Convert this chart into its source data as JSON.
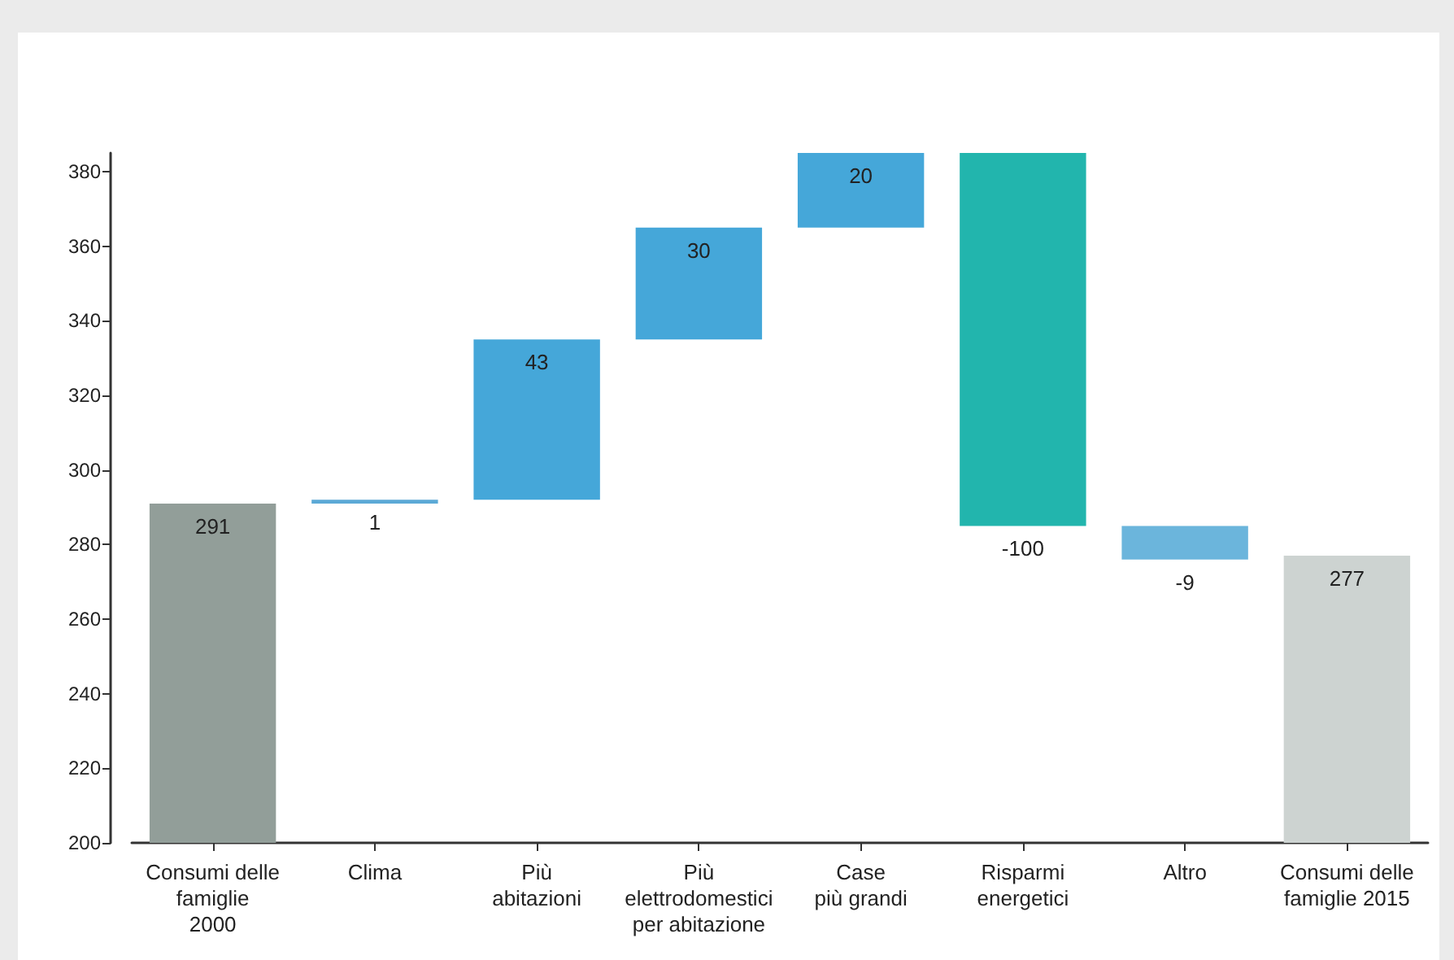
{
  "chart_data": {
    "type": "bar",
    "categories": [
      "Consumi delle\nfamiglie\n2000",
      "Clima",
      "Più\nabitazioni",
      "Più\nelettrodomestici\nper abitazione",
      "Case\npiù grandi",
      "Risparmi\nenergetici",
      "Altro",
      "Consumi delle\nfamiglie 2015"
    ],
    "values": [
      291,
      1,
      43,
      30,
      20,
      -100,
      -9,
      277
    ],
    "base": [
      null,
      291,
      292,
      335,
      365,
      385,
      285,
      null
    ],
    "colors": [
      "#929e99",
      "#5ba9d6",
      "#45a7d9",
      "#45a7d9",
      "#45a7d9",
      "#22b5ad",
      "#6bb5dc",
      "#cdd3d1"
    ],
    "ylim": [
      200,
      385
    ],
    "yticks": [
      200,
      220,
      240,
      260,
      280,
      300,
      320,
      340,
      360,
      380
    ],
    "data_labels": true
  }
}
